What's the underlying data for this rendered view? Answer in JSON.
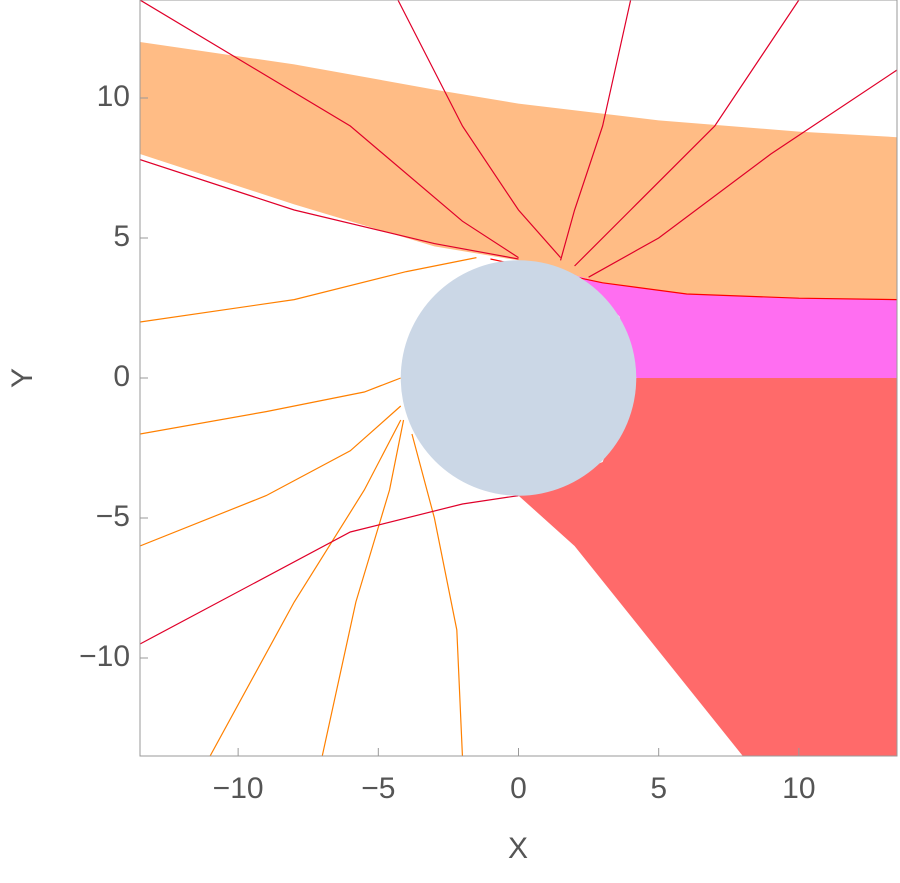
{
  "chart_data": {
    "type": "line",
    "xlabel": "X",
    "ylabel": "Y",
    "xlim": [
      -13.5,
      13.5
    ],
    "ylim": [
      -13.5,
      13.5
    ],
    "xticks": [
      {
        "value": -10,
        "label": "−10"
      },
      {
        "value": -5,
        "label": "−5"
      },
      0,
      5,
      10
    ],
    "yticks": [
      {
        "value": -10,
        "label": "−10"
      },
      {
        "value": -5,
        "label": "−5"
      },
      0,
      5,
      10
    ],
    "circle": {
      "center_x": 0,
      "center_y": 0,
      "radius": 4.2,
      "color": "#cbd7e6"
    },
    "series": [
      {
        "color": "#ffb070",
        "fill": true,
        "x": [
          -13.5,
          -8,
          -3,
          0,
          5,
          10,
          13.5,
          13.5,
          10,
          6,
          3,
          0,
          -3,
          -8,
          -13.5
        ],
        "y": [
          12,
          11.2,
          10.3,
          9.8,
          9.2,
          8.8,
          8.6,
          2.8,
          2.85,
          3.0,
          3.4,
          4.2,
          4.7,
          6.2,
          8
        ]
      },
      {
        "color": "#ff55ee",
        "fill": true,
        "x": [
          0,
          3,
          6,
          10,
          13.5,
          13.5,
          4.2,
          3.6,
          2
        ],
        "y": [
          4.2,
          3.4,
          3.0,
          2.85,
          2.8,
          0,
          0,
          2.2,
          3.7
        ]
      },
      {
        "color": "#ff5050",
        "fill": true,
        "x": [
          4.2,
          13.5,
          13.5,
          8,
          2,
          0,
          3
        ],
        "y": [
          0,
          0,
          -13.5,
          -13.5,
          -6,
          -4.2,
          -3
        ]
      },
      {
        "color": "#ff0000",
        "fill": false,
        "x": [
          -1,
          3,
          6,
          10,
          13.5
        ],
        "y": [
          4.25,
          3.4,
          3.0,
          2.85,
          2.8
        ]
      },
      {
        "color": "#ff8000",
        "fill": false,
        "x": [
          -13.5,
          -8,
          -4,
          -1.5
        ],
        "y": [
          2,
          2.8,
          3.8,
          4.3
        ]
      },
      {
        "color": "#ff8000",
        "fill": false,
        "x": [
          -13.5,
          -9,
          -5.5,
          -4.2
        ],
        "y": [
          -2,
          -1.2,
          -0.5,
          0
        ]
      },
      {
        "color": "#ff8000",
        "fill": false,
        "x": [
          -13.5,
          -9,
          -6,
          -4.2
        ],
        "y": [
          -6,
          -4.2,
          -2.6,
          -1
        ]
      },
      {
        "color": "#ff8000",
        "fill": false,
        "x": [
          -11,
          -8,
          -5.5,
          -4.2
        ],
        "y": [
          -13.5,
          -8,
          -4,
          -1.5
        ]
      },
      {
        "color": "#ff8000",
        "fill": false,
        "x": [
          -7,
          -5.8,
          -4.6,
          -4.1
        ],
        "y": [
          -13.5,
          -8,
          -4,
          -1.5
        ]
      },
      {
        "color": "#ff8000",
        "fill": false,
        "x": [
          -2,
          -2.2,
          -3,
          -3.8
        ],
        "y": [
          -13.5,
          -9,
          -5,
          -2
        ]
      },
      {
        "color": "#e0002a",
        "fill": false,
        "x": [
          -13.5,
          -6,
          -2,
          0
        ],
        "y": [
          -9.5,
          -5.5,
          -4.5,
          -4.2
        ]
      },
      {
        "color": "#e0002a",
        "fill": false,
        "x": [
          -13.5,
          -8,
          -3,
          0
        ],
        "y": [
          7.8,
          6,
          4.8,
          4.25
        ]
      },
      {
        "color": "#e0002a",
        "fill": false,
        "x": [
          -13.5,
          -6,
          -2,
          0
        ],
        "y": [
          13.5,
          9,
          5.6,
          4.3
        ]
      },
      {
        "color": "#e0002a",
        "fill": false,
        "x": [
          -4.3,
          -2,
          0,
          1.5
        ],
        "y": [
          13.5,
          9,
          6,
          4.3
        ]
      },
      {
        "color": "#e0002a",
        "fill": false,
        "x": [
          4,
          3,
          2,
          1.5
        ],
        "y": [
          13.5,
          9,
          6,
          4.2
        ]
      },
      {
        "color": "#e0002a",
        "fill": false,
        "x": [
          10,
          7,
          4,
          2
        ],
        "y": [
          13.5,
          9,
          6,
          4
        ]
      },
      {
        "color": "#e0002a",
        "fill": false,
        "x": [
          13.5,
          9,
          5,
          2.5
        ],
        "y": [
          11,
          8,
          5,
          3.6
        ]
      }
    ]
  }
}
